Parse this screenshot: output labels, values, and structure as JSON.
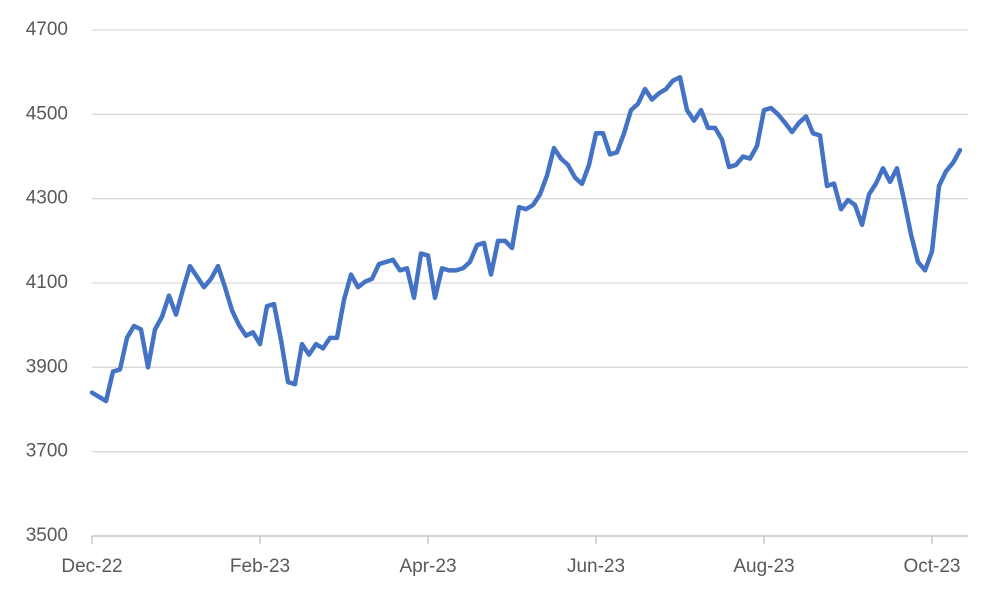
{
  "chart_data": {
    "type": "line",
    "categories": [
      "Dec-22",
      null,
      null,
      null,
      null,
      null,
      null,
      null,
      null,
      null,
      null,
      null,
      null,
      null,
      null,
      null,
      null,
      null,
      null,
      null,
      null,
      null,
      null,
      null,
      "Feb-23",
      null,
      null,
      null,
      null,
      null,
      null,
      null,
      null,
      null,
      null,
      null,
      null,
      null,
      null,
      null,
      null,
      null,
      null,
      null,
      null,
      null,
      null,
      null,
      "Apr-23",
      null,
      null,
      null,
      null,
      null,
      null,
      null,
      null,
      null,
      null,
      null,
      null,
      null,
      null,
      null,
      null,
      null,
      null,
      null,
      null,
      null,
      null,
      null,
      "Jun-23",
      null,
      null,
      null,
      null,
      null,
      null,
      null,
      null,
      null,
      null,
      null,
      null,
      null,
      null,
      null,
      null,
      null,
      null,
      null,
      null,
      null,
      null,
      null,
      "Aug-23",
      null,
      null,
      null,
      null,
      null,
      null,
      null,
      null,
      null,
      null,
      null,
      null,
      null,
      null,
      null,
      null,
      null,
      null,
      null,
      null,
      null,
      null,
      null,
      "Oct-23",
      null,
      null,
      null,
      null
    ],
    "values": [
      3840,
      3830,
      3820,
      3890,
      3895,
      3970,
      3998,
      3990,
      3900,
      3990,
      4020,
      4070,
      4025,
      4085,
      4140,
      4115,
      4090,
      4110,
      4140,
      4090,
      4035,
      4000,
      3975,
      3983,
      3955,
      4045,
      4050,
      3965,
      3865,
      3860,
      3955,
      3930,
      3955,
      3945,
      3970,
      3970,
      4060,
      4120,
      4090,
      4103,
      4110,
      4145,
      4150,
      4155,
      4130,
      4135,
      4065,
      4170,
      4165,
      4065,
      4135,
      4130,
      4130,
      4135,
      4150,
      4190,
      4195,
      4120,
      4200,
      4200,
      4183,
      4280,
      4275,
      4285,
      4310,
      4355,
      4420,
      4395,
      4380,
      4350,
      4335,
      4380,
      4455,
      4455,
      4405,
      4410,
      4455,
      4510,
      4525,
      4560,
      4535,
      4550,
      4560,
      4580,
      4588,
      4510,
      4485,
      4510,
      4468,
      4468,
      4440,
      4375,
      4380,
      4400,
      4395,
      4425,
      4510,
      4515,
      4500,
      4480,
      4458,
      4480,
      4495,
      4455,
      4450,
      4330,
      4336,
      4275,
      4297,
      4285,
      4238,
      4310,
      4336,
      4372,
      4340,
      4372,
      4297,
      4215,
      4150,
      4130,
      4175,
      4330,
      4365,
      4385,
      4415
    ],
    "color": "#4472c4",
    "ylim": [
      3500,
      4700
    ],
    "yticks": [
      3500,
      3700,
      3900,
      4100,
      4300,
      4500,
      4700
    ],
    "grid": true
  }
}
